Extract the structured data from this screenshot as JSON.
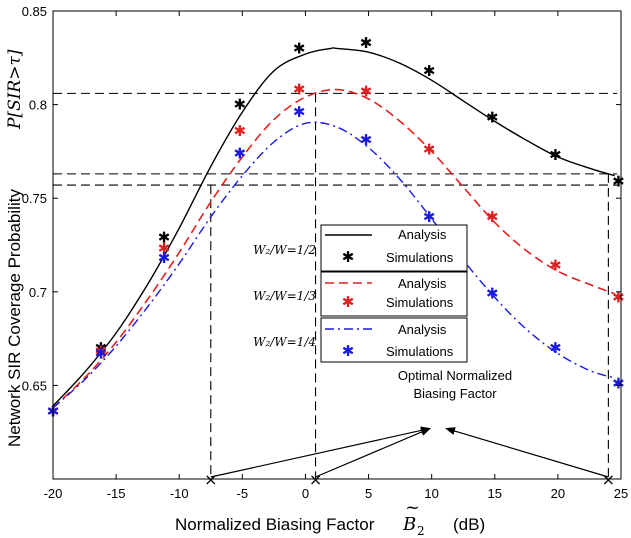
{
  "chart_data": {
    "type": "line",
    "title": "",
    "xlabel": "Normalized Biasing Factor",
    "xlabel_symbol": "B",
    "xlabel_tilde": "~",
    "xlabel_subscript": "2",
    "xlabel_unit": "(dB)",
    "ylabel": "Network SIR Coverage Probability",
    "ylabel_symbol": "P[SIR>τ]",
    "xlim": [
      -20,
      25
    ],
    "ylim": [
      0.6,
      0.85
    ],
    "x_ticks": [
      "-20",
      "-15",
      "-10",
      "-5",
      "0",
      "5",
      "10",
      "15",
      "20",
      "25"
    ],
    "y_ticks": [
      "0.65",
      "0.7",
      "0.75",
      "0.8",
      "0.85"
    ],
    "series": [
      {
        "name": "Analysis",
        "group": "W2/W=1/2",
        "color": "#000000",
        "dash": "solid",
        "x": [
          -20,
          -17.5,
          -15,
          -12.5,
          -10,
          -7.5,
          -5,
          -2.5,
          0,
          2,
          2.5,
          5,
          7.5,
          10,
          12.5,
          15,
          17.5,
          20,
          22.5,
          24.5
        ],
        "y": [
          0.639,
          0.657,
          0.678,
          0.704,
          0.734,
          0.767,
          0.796,
          0.818,
          0.827,
          0.83,
          0.83,
          0.828,
          0.822,
          0.813,
          0.802,
          0.791,
          0.781,
          0.772,
          0.766,
          0.762
        ]
      },
      {
        "name": "Simulations",
        "group": "W2/W=1/2",
        "color": "#000000",
        "marker": "star",
        "x": [
          -20,
          -16.2,
          -11.2,
          -5.2,
          -0.5,
          4.8,
          9.8,
          14.8,
          19.8,
          24.8
        ],
        "y": [
          0.636,
          0.67,
          0.729,
          0.8,
          0.83,
          0.833,
          0.818,
          0.793,
          0.773,
          0.759
        ]
      },
      {
        "name": "Analysis",
        "group": "W2/W=1/3",
        "color": "#e02020",
        "dash": "dashed",
        "x": [
          -20,
          -17.5,
          -15,
          -12.5,
          -10,
          -7.5,
          -5,
          -2.5,
          0,
          2.5,
          5,
          7.5,
          10,
          12.5,
          15,
          17.5,
          20,
          22.5,
          24.5
        ],
        "y": [
          0.638,
          0.654,
          0.673,
          0.696,
          0.721,
          0.748,
          0.772,
          0.792,
          0.804,
          0.808,
          0.803,
          0.791,
          0.775,
          0.756,
          0.737,
          0.722,
          0.711,
          0.704,
          0.699
        ]
      },
      {
        "name": "Simulations",
        "group": "W2/W=1/3",
        "color": "#e02020",
        "marker": "star",
        "x": [
          -20,
          -16.2,
          -11.2,
          -5.2,
          -0.5,
          4.8,
          9.8,
          14.8,
          19.8,
          24.8
        ],
        "y": [
          0.636,
          0.668,
          0.723,
          0.786,
          0.808,
          0.807,
          0.776,
          0.74,
          0.714,
          0.697
        ]
      },
      {
        "name": "Analysis",
        "group": "W2/W=1/4",
        "color": "#1a1ae0",
        "dash": "dashdot",
        "x": [
          -20,
          -17.5,
          -15,
          -12.5,
          -10,
          -7.5,
          -5,
          -2.5,
          0,
          2.5,
          5,
          7.5,
          10,
          12.5,
          15,
          17.5,
          20,
          22.5,
          24.5
        ],
        "y": [
          0.638,
          0.653,
          0.671,
          0.692,
          0.715,
          0.74,
          0.762,
          0.78,
          0.79,
          0.788,
          0.777,
          0.76,
          0.739,
          0.717,
          0.697,
          0.68,
          0.667,
          0.658,
          0.654
        ]
      },
      {
        "name": "Simulations",
        "group": "W2/W=1/4",
        "color": "#1a1ae0",
        "marker": "star",
        "x": [
          -20,
          -16.2,
          -11.2,
          -5.2,
          -0.5,
          4.8,
          9.8,
          14.8,
          19.8,
          24.8
        ],
        "y": [
          0.636,
          0.667,
          0.718,
          0.774,
          0.796,
          0.781,
          0.74,
          0.699,
          0.67,
          0.651
        ]
      }
    ],
    "legend": [
      {
        "group_label": "W₂/W=1/2",
        "entries": [
          "Analysis",
          "Simulations"
        ]
      },
      {
        "group_label": "W₂/W=1/3",
        "entries": [
          "Analysis",
          "Simulations"
        ]
      },
      {
        "group_label": "W₂/W=1/4",
        "entries": [
          "Analysis",
          "Simulations"
        ]
      }
    ],
    "legend_position": "center-right",
    "reference_lines": {
      "optimal_x": [
        -7.5,
        0.8,
        24
      ],
      "optimal_y": [
        0.806,
        0.763,
        0.757
      ]
    },
    "annotation": {
      "text_line1": "Optimal Normalized",
      "text_line2": "Biasing Factor",
      "target": [
        10.5,
        0.627
      ]
    },
    "grid": false
  }
}
